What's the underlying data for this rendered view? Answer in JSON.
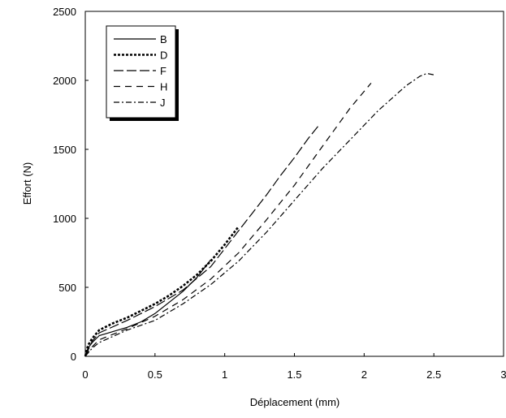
{
  "chart_data": {
    "type": "line",
    "title": "",
    "xlabel": "Déplacement (mm)",
    "ylabel": "Effort (N)",
    "xlim": [
      0,
      3
    ],
    "ylim": [
      0,
      2500
    ],
    "x_ticks": [
      0,
      0.5,
      1,
      1.5,
      2,
      2.5,
      3
    ],
    "x_tick_labels": [
      "0",
      "0.5",
      "1",
      "1.5",
      "2",
      "2.5",
      "3"
    ],
    "y_ticks": [
      0,
      500,
      1000,
      1500,
      2000,
      2500
    ],
    "y_tick_labels": [
      "0",
      "500",
      "1000",
      "1500",
      "2000",
      "2500"
    ],
    "grid": false,
    "legend_position": "top-left",
    "series": [
      {
        "name": "B",
        "style": "solid",
        "color": "#000000",
        "x": [
          0,
          0.02,
          0.05,
          0.1,
          0.2,
          0.3,
          0.4,
          0.5,
          0.6,
          0.7,
          0.8,
          0.9
        ],
        "y": [
          0,
          60,
          100,
          150,
          180,
          210,
          250,
          310,
          390,
          470,
          570,
          700
        ]
      },
      {
        "name": "D",
        "style": "dotted-bold",
        "color": "#000000",
        "x": [
          0,
          0.02,
          0.05,
          0.1,
          0.2,
          0.3,
          0.4,
          0.5,
          0.6,
          0.7,
          0.8,
          0.9,
          1.0,
          1.1
        ],
        "y": [
          0,
          80,
          130,
          190,
          240,
          280,
          330,
          380,
          440,
          510,
          590,
          690,
          810,
          940
        ]
      },
      {
        "name": "F",
        "style": "long-dash",
        "color": "#000000",
        "x": [
          0,
          0.05,
          0.1,
          0.3,
          0.5,
          0.7,
          0.9,
          1.0,
          1.1,
          1.2,
          1.3,
          1.4,
          1.5,
          1.6,
          1.68
        ],
        "y": [
          0,
          110,
          170,
          260,
          360,
          480,
          650,
          780,
          910,
          1040,
          1170,
          1310,
          1440,
          1580,
          1680
        ]
      },
      {
        "name": "H",
        "style": "dash",
        "color": "#000000",
        "x": [
          0,
          0.05,
          0.1,
          0.3,
          0.5,
          0.7,
          0.9,
          1.1,
          1.3,
          1.5,
          1.7,
          1.9,
          2.05
        ],
        "y": [
          0,
          70,
          120,
          200,
          290,
          410,
          560,
          750,
          990,
          1240,
          1520,
          1800,
          1980
        ]
      },
      {
        "name": "J",
        "style": "dash-dot",
        "color": "#000000",
        "x": [
          0,
          0.05,
          0.1,
          0.3,
          0.5,
          0.7,
          0.9,
          1.1,
          1.3,
          1.5,
          1.7,
          1.9,
          2.1,
          2.3,
          2.4,
          2.45,
          2.5
        ],
        "y": [
          0,
          60,
          100,
          190,
          260,
          380,
          520,
          690,
          900,
          1130,
          1360,
          1570,
          1780,
          1960,
          2030,
          2050,
          2040
        ]
      }
    ]
  }
}
